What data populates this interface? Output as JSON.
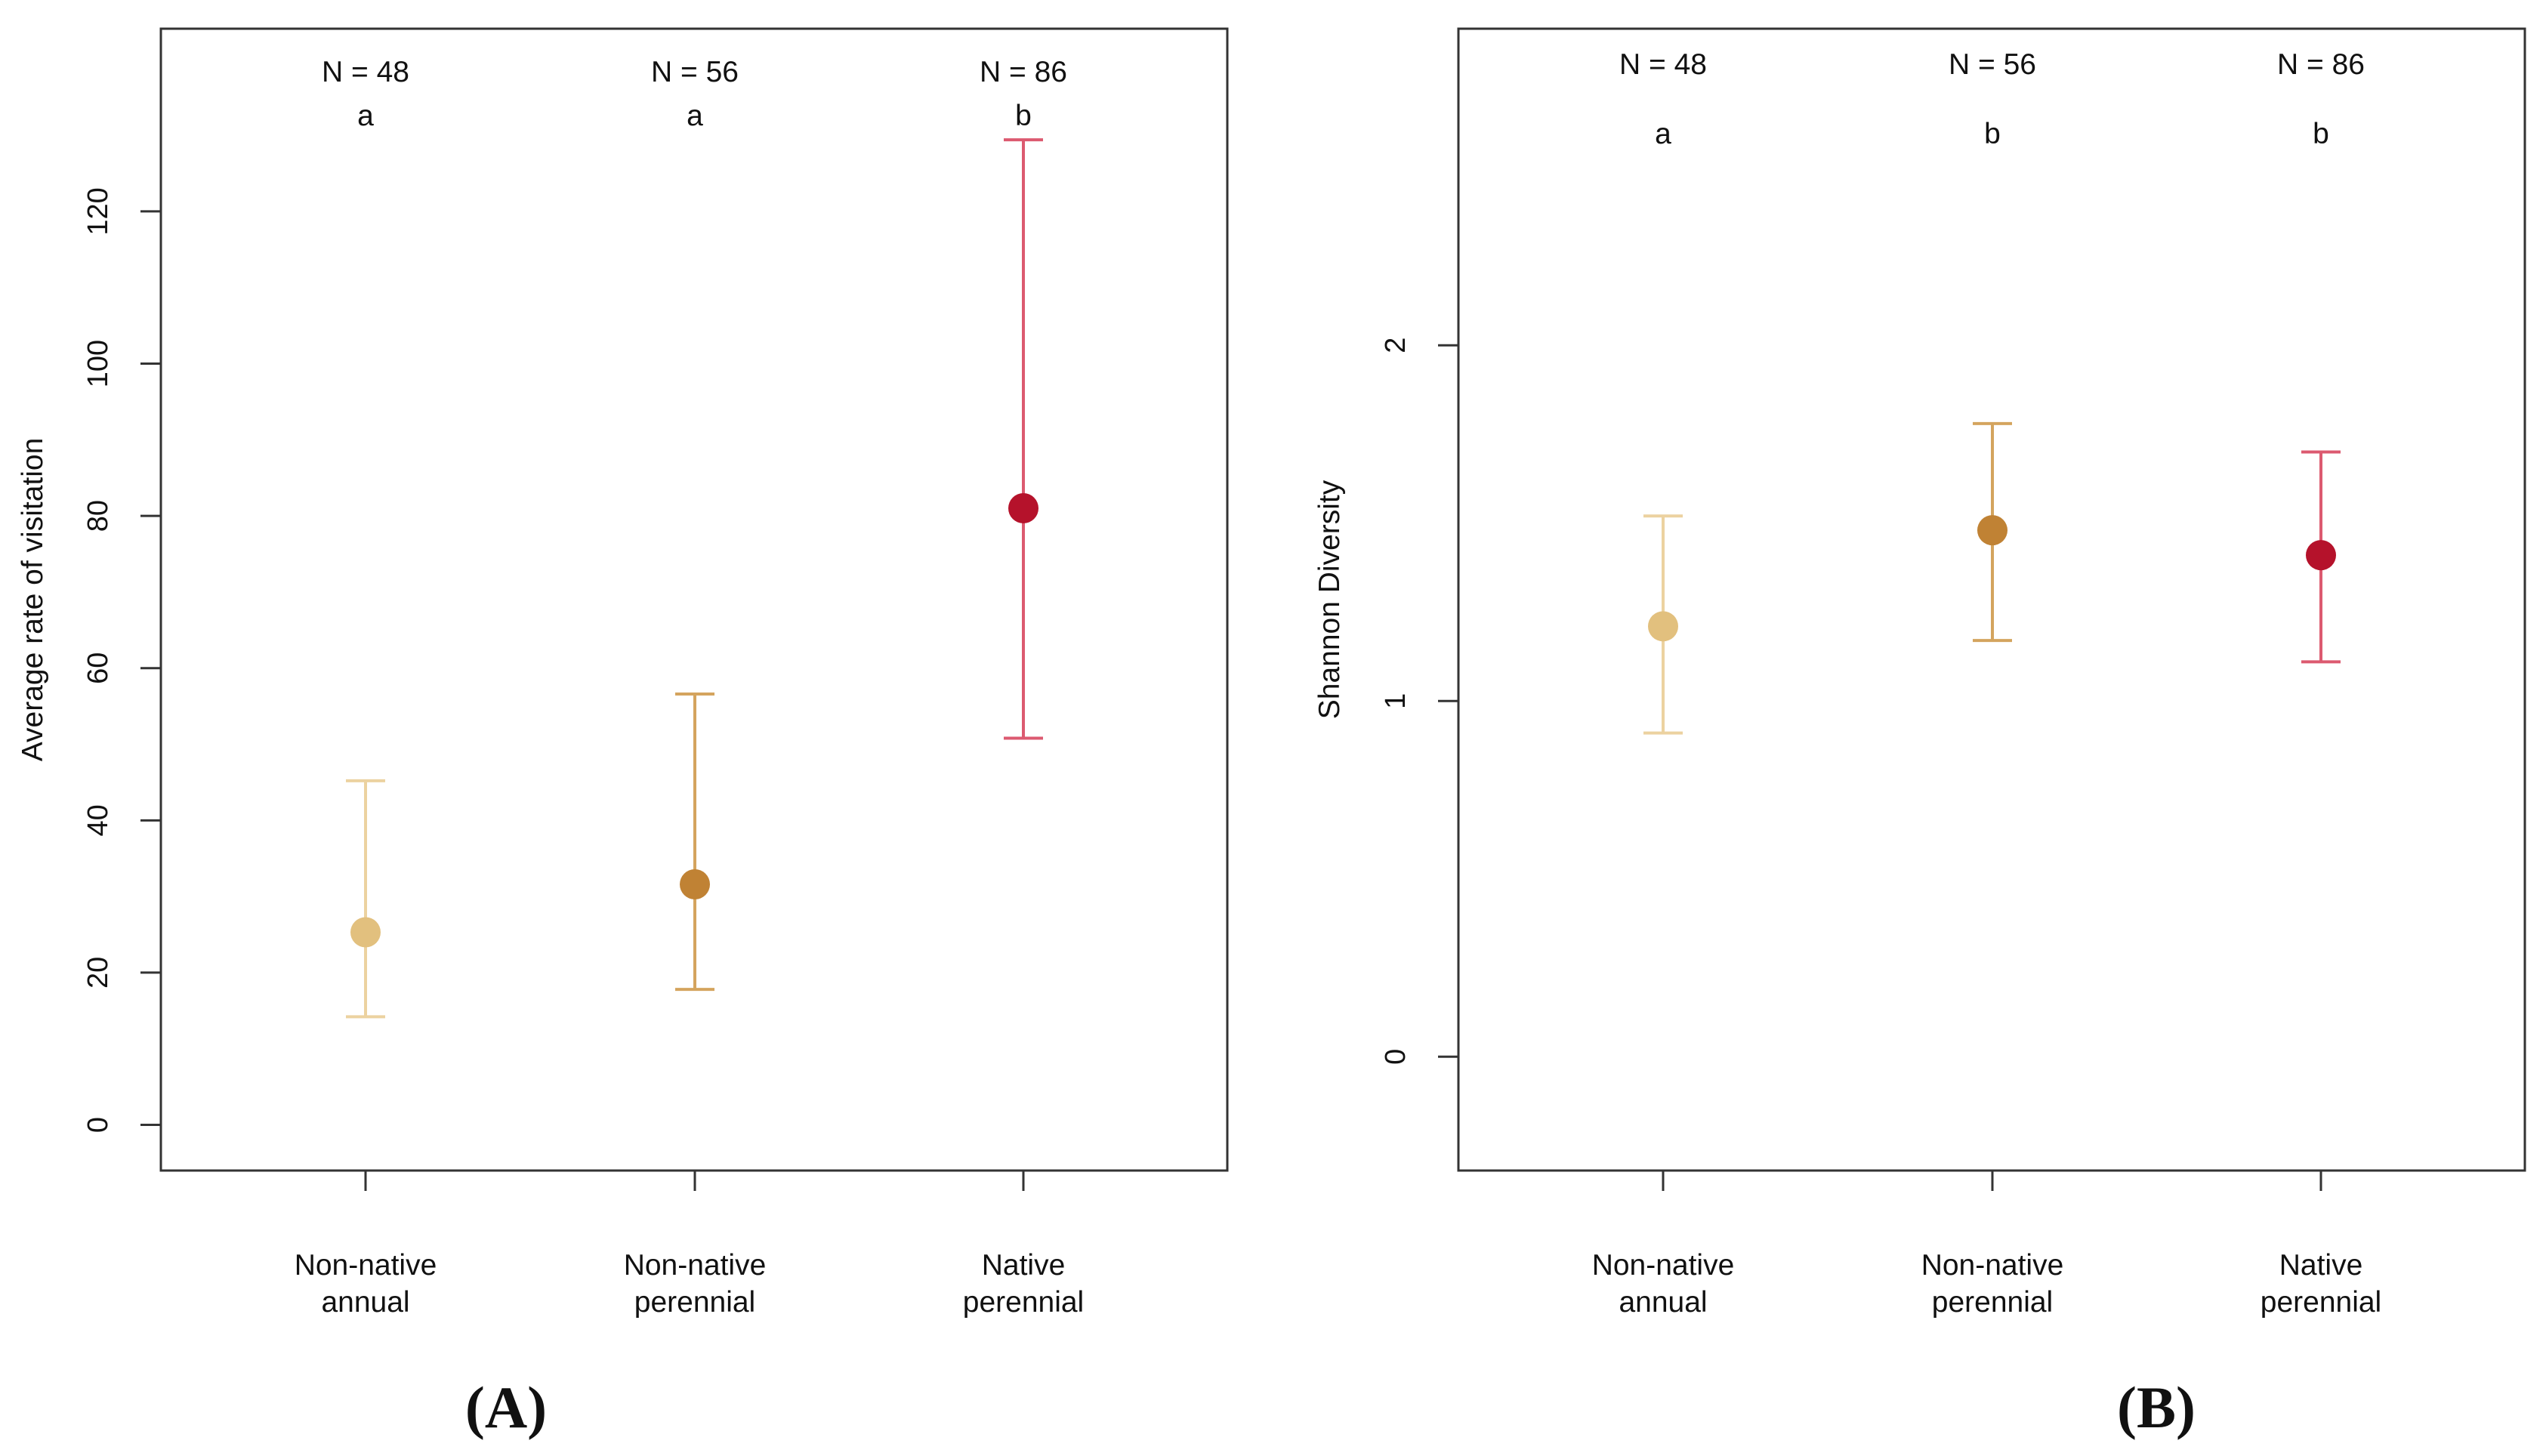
{
  "colors": {
    "Non-native annual": "#e2c07e",
    "Non-native perennial": "#c08234",
    "Native perennial": "#b5122b",
    "err_Non-native annual": "#ecd2a0",
    "err_Non-native perennial": "#d4a45e",
    "err_Native perennial": "#dc5a70"
  },
  "chart_data": [
    {
      "type": "scatter",
      "subtype": "point-with-error-bars",
      "panel_label": "(A)",
      "ylabel": "Average rate of visitation",
      "xlabel": "",
      "ylim": [
        -6,
        144
      ],
      "yticks": [
        0,
        20,
        40,
        60,
        80,
        100,
        120
      ],
      "categories": [
        {
          "line1": "Non-native",
          "line2": "annual"
        },
        {
          "line1": "Non-native",
          "line2": "perennial"
        },
        {
          "line1": "Native",
          "line2": "perennial"
        }
      ],
      "points": [
        {
          "group": "Non-native annual",
          "mean": 25.3,
          "lower": 14.2,
          "upper": 45.2,
          "n_label": "N = 48",
          "letter": "a"
        },
        {
          "group": "Non-native perennial",
          "mean": 31.6,
          "lower": 17.8,
          "upper": 56.6,
          "n_label": "N = 56",
          "letter": "a"
        },
        {
          "group": "Native perennial",
          "mean": 81.0,
          "lower": 50.8,
          "upper": 129.4,
          "n_label": "N = 86",
          "letter": "b"
        }
      ]
    },
    {
      "type": "scatter",
      "subtype": "point-with-error-bars",
      "panel_label": "(B)",
      "ylabel": "Shannon Diversity",
      "xlabel": "",
      "ylim": [
        -0.32,
        2.89
      ],
      "yticks": [
        0,
        1,
        2
      ],
      "categories": [
        {
          "line1": "Non-native",
          "line2": "annual"
        },
        {
          "line1": "Non-native",
          "line2": "perennial"
        },
        {
          "line1": "Native",
          "line2": "perennial"
        }
      ],
      "points": [
        {
          "group": "Non-native annual",
          "mean": 1.21,
          "lower": 0.91,
          "upper": 1.52,
          "n_label": "N = 48",
          "letter": "a"
        },
        {
          "group": "Non-native perennial",
          "mean": 1.48,
          "lower": 1.17,
          "upper": 1.78,
          "n_label": "N = 56",
          "letter": "b"
        },
        {
          "group": "Native perennial",
          "mean": 1.41,
          "lower": 1.11,
          "upper": 1.7,
          "n_label": "N = 86",
          "letter": "b"
        }
      ]
    }
  ]
}
